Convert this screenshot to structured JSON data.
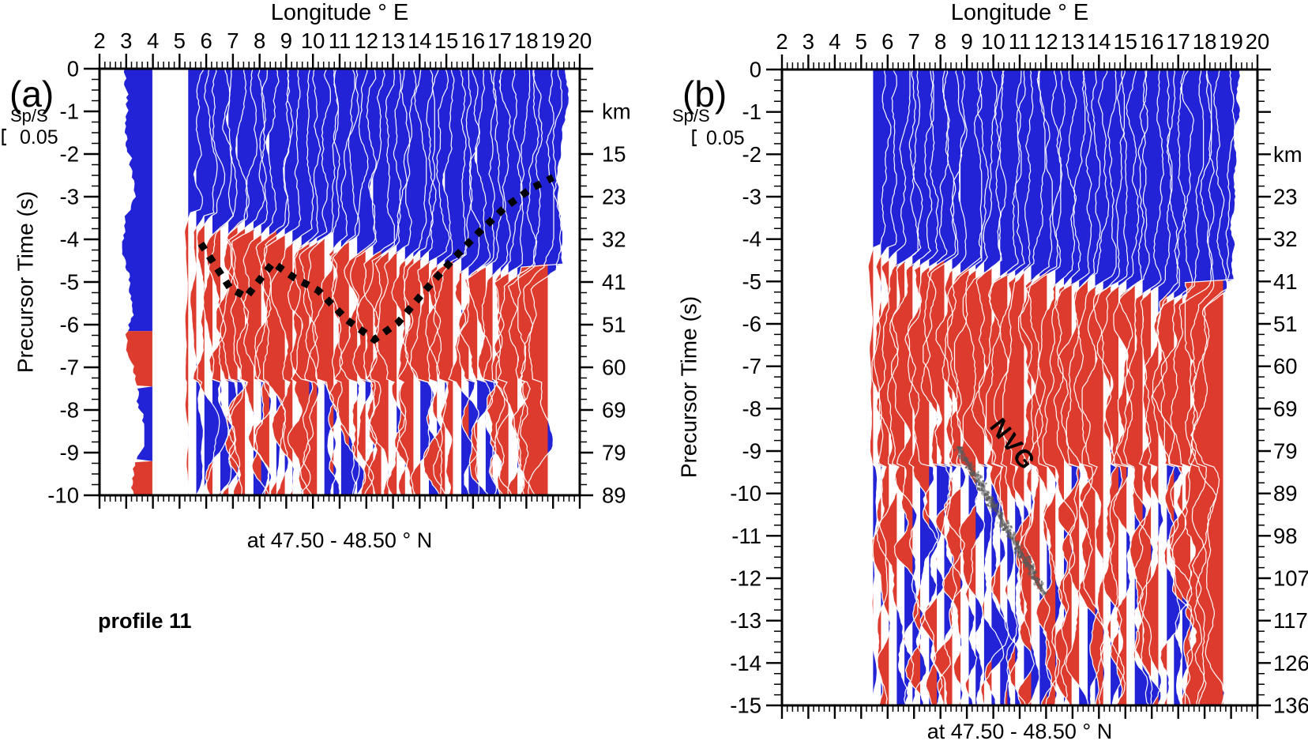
{
  "figure": {
    "background": "#ffffff",
    "axis_color": "#000000"
  },
  "chart_data": [
    {
      "type": "area",
      "subtype": "seismic_wiggle_record_section",
      "panel_letter": "(a)",
      "title": "Longitude ° E",
      "x_axis": {
        "label": "Longitude ° E",
        "range": [
          2,
          20
        ],
        "minor_step": 0.2,
        "tick_labels": [
          "2",
          "3",
          "4",
          "5",
          "6",
          "7",
          "8",
          "9",
          "10",
          "11",
          "12",
          "13",
          "14",
          "15",
          "16",
          "17",
          "18",
          "19",
          "20"
        ]
      },
      "y_axis": {
        "label": "Precursor Time (s)",
        "range": [
          0,
          -10
        ],
        "minor_step": 0.25,
        "tick_labels": [
          "0",
          "-1",
          "-2",
          "-3",
          "-4",
          "-5",
          "-6",
          "-7",
          "-8",
          "-9",
          "-10"
        ]
      },
      "right_axis": {
        "unit": "km",
        "entries": [
          {
            "t": -1,
            "label": "km"
          },
          {
            "t": -2,
            "label": "15"
          },
          {
            "t": -3,
            "label": "23"
          },
          {
            "t": -4,
            "label": "32"
          },
          {
            "t": -5,
            "label": "41"
          },
          {
            "t": -6,
            "label": "51"
          },
          {
            "t": -7,
            "label": "60"
          },
          {
            "t": -8,
            "label": "69"
          },
          {
            "t": -9,
            "label": "79"
          },
          {
            "t": -10,
            "label": "89"
          }
        ]
      },
      "bottom_label": "at 47.50 - 48.50 ° N",
      "caption": "profile 11",
      "amplitude_scale": {
        "label": "Sp/S",
        "value": "0.05"
      },
      "colors": {
        "positive": "#2222d6",
        "negative": "#dd3b2e",
        "wiggle_line": "#ffffff",
        "picks": "#000000"
      },
      "trace_region": {
        "lon_start": 5.35,
        "lon_end": 18.55,
        "spacing": 0.3,
        "amplitude_deg": 0.55,
        "seed": 7
      },
      "polarity_zones": {
        "shallow_bias": 1.05,
        "shallow_bottom_start": -3.35,
        "shallow_bottom_slope": -1.35,
        "mid_bias": -0.6,
        "mid_bottom": -7.3,
        "deep_bias": -0.05,
        "deep_noise": 1.3
      },
      "fringe_trace": {
        "lon": 18.8,
        "red_below": -4.6,
        "amp_mul": 1.4
      },
      "isolated_band": {
        "baseline_lon": 3.98,
        "max_width_deg": 1.02,
        "segments": [
          {
            "t0": 0,
            "t1": -6.15,
            "polarity": 1
          },
          {
            "t0": -6.15,
            "t1": -7.45,
            "polarity": -1
          },
          {
            "t0": -7.45,
            "t1": -9.2,
            "polarity": 1
          },
          {
            "t0": -9.2,
            "t1": -10,
            "polarity": -1
          }
        ]
      },
      "picks_dotted_line": {
        "points": [
          [
            5.8,
            -4.1
          ],
          [
            6.9,
            -5.15
          ],
          [
            7.5,
            -5.35
          ],
          [
            8.5,
            -4.55
          ],
          [
            9.3,
            -4.9
          ],
          [
            10.2,
            -5.2
          ],
          [
            11.3,
            -5.9
          ],
          [
            12.3,
            -6.35
          ],
          [
            13.2,
            -5.95
          ],
          [
            14.2,
            -5.2
          ],
          [
            15.2,
            -4.5
          ],
          [
            16.2,
            -3.85
          ],
          [
            17.2,
            -3.25
          ],
          [
            18.2,
            -2.8
          ],
          [
            19.0,
            -2.55
          ]
        ]
      }
    },
    {
      "type": "area",
      "subtype": "seismic_wiggle_record_section",
      "panel_letter": "(b)",
      "title": "Longitude ° E",
      "x_axis": {
        "label": "Longitude ° E",
        "range": [
          2,
          20
        ],
        "minor_step": 0.2,
        "tick_labels": [
          "2",
          "3",
          "4",
          "5",
          "6",
          "7",
          "8",
          "9",
          "10",
          "11",
          "12",
          "13",
          "14",
          "15",
          "16",
          "17",
          "18",
          "19",
          "20"
        ]
      },
      "y_axis": {
        "label": "Precursor Time (s)",
        "range": [
          0,
          -15
        ],
        "minor_step": 0.25,
        "tick_labels": [
          "0",
          "-1",
          "-2",
          "-3",
          "-4",
          "-5",
          "-6",
          "-7",
          "-8",
          "-9",
          "-10",
          "-11",
          "-12",
          "-13",
          "-14",
          "-15"
        ]
      },
      "right_axis": {
        "unit": "km",
        "entries": [
          {
            "t": -2,
            "label": "km"
          },
          {
            "t": -3,
            "label": "23"
          },
          {
            "t": -4,
            "label": "32"
          },
          {
            "t": -5,
            "label": "41"
          },
          {
            "t": -6,
            "label": "51"
          },
          {
            "t": -7,
            "label": "60"
          },
          {
            "t": -8,
            "label": "69"
          },
          {
            "t": -9,
            "label": "79"
          },
          {
            "t": -10,
            "label": "89"
          },
          {
            "t": -11,
            "label": "98"
          },
          {
            "t": -12,
            "label": "107"
          },
          {
            "t": -13,
            "label": "117"
          },
          {
            "t": -14,
            "label": "126"
          },
          {
            "t": -15,
            "label": "136"
          }
        ]
      },
      "bottom_label": "at 47.50 - 48.50 ° N",
      "amplitude_scale": {
        "label": "Sp/S",
        "value": "0.05"
      },
      "colors": {
        "positive": "#2222d6",
        "negative": "#dd3b2e",
        "wiggle_line": "#ffffff"
      },
      "trace_region": {
        "lon_start": 5.45,
        "lon_end": 18.45,
        "spacing": 0.3,
        "amplitude_deg": 0.55,
        "seed": 11
      },
      "polarity_zones": {
        "shallow_bias": 1.05,
        "shallow_bottom_start": -4.15,
        "shallow_bottom_slope": -1.05,
        "mid_bias": -0.65,
        "mid_bottom": -9.35,
        "deep_bias": -0.05,
        "deep_noise": 1.3
      },
      "fringe_trace": {
        "lon": 18.7,
        "red_below": -5.0,
        "amp_mul": 1.8
      },
      "nvg": {
        "label": "NVG",
        "band_color": "#595959",
        "band_points": [
          [
            8.65,
            -8.9
          ],
          [
            10.3,
            -10.6
          ],
          [
            11.95,
            -12.4
          ]
        ]
      }
    }
  ]
}
